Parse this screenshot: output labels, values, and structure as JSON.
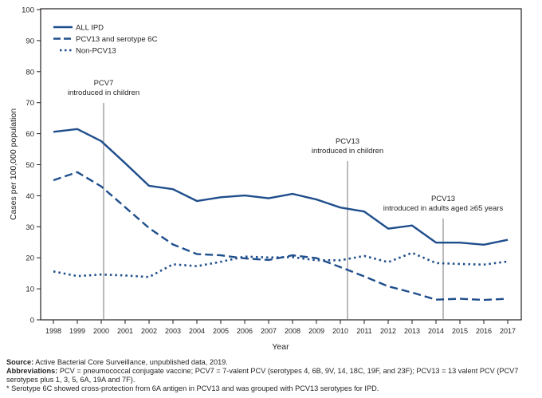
{
  "chart_data": {
    "type": "line",
    "title": "",
    "xlabel": "Year",
    "ylabel": "Cases per 100,000 population",
    "ylim": [
      0,
      100
    ],
    "yticks": [
      0,
      10,
      20,
      30,
      40,
      50,
      60,
      70,
      80,
      90,
      100
    ],
    "x": [
      1998,
      1999,
      2000,
      2001,
      2002,
      2003,
      2004,
      2005,
      2006,
      2007,
      2008,
      2009,
      2010,
      2011,
      2012,
      2013,
      2014,
      2015,
      2016,
      2017
    ],
    "grid": false,
    "legend_position": "top-left",
    "color": "#1f4e8c",
    "series": [
      {
        "name": "ALL IPD",
        "style": "solid",
        "values": [
          60.6,
          61.5,
          57.6,
          50.5,
          43.2,
          42.1,
          38.3,
          39.5,
          40.1,
          39.2,
          40.6,
          38.8,
          36.2,
          34.9,
          29.4,
          30.4,
          24.9,
          24.9,
          24.2,
          25.8
        ]
      },
      {
        "name": "PCV13 and serotype 6C",
        "style": "dashed",
        "values": [
          45.0,
          47.6,
          43.0,
          36.3,
          29.6,
          24.3,
          21.2,
          20.8,
          19.8,
          19.3,
          20.8,
          19.9,
          17.0,
          14.0,
          10.8,
          8.8,
          6.5,
          6.8,
          6.4,
          6.8
        ]
      },
      {
        "name": "Non-PCV13",
        "style": "dotted",
        "values": [
          15.6,
          14.1,
          14.6,
          14.3,
          13.8,
          17.9,
          17.3,
          18.7,
          20.4,
          20.1,
          20.2,
          19.2,
          19.2,
          20.6,
          18.6,
          21.6,
          18.3,
          18.0,
          17.8,
          18.8
        ]
      }
    ],
    "annotations": [
      {
        "x": 2000.1,
        "line1": "PCV7",
        "line2": "introduced in children"
      },
      {
        "x": 2010.3,
        "line1": "PCV13",
        "line2": "introduced in children"
      },
      {
        "x": 2014.3,
        "line1": "PCV13",
        "line2": "introduced in adults aged ≥65 years"
      }
    ]
  },
  "notes": {
    "source_label": "Source:",
    "source_text": " Active Bacterial Core Surveillance, unpublished data, 2019.",
    "abbrev_label": "Abbreviations:",
    "abbrev_text": " PCV = pneumococcal conjugate vaccine; PCV7 = 7-valent PCV (serotypes 4, 6B, 9V, 14, 18C, 19F, and 23F); PCV13 = 13 valent PCV (PCV7 serotypes plus  1, 3, 5, 6A, 19A and 7F).",
    "footnote": "* Serotype 6C showed cross-protection from 6A antigen in PCV13 and was grouped with PCV13 serotypes for IPD."
  }
}
